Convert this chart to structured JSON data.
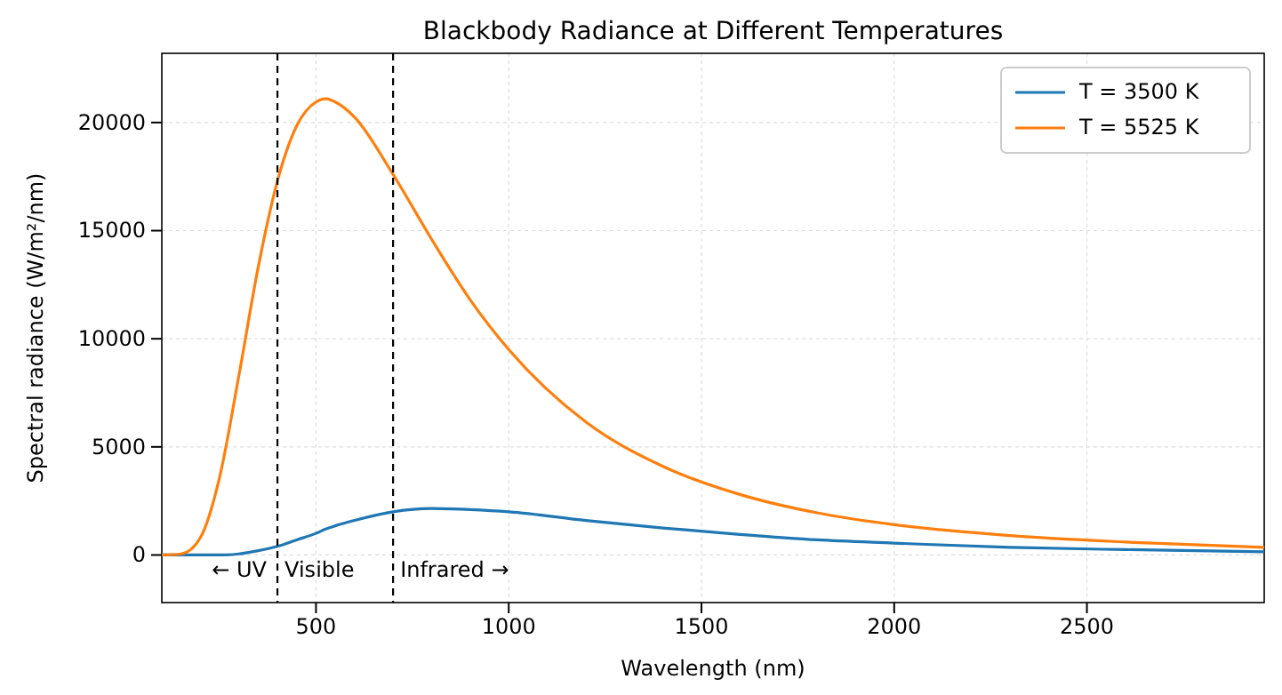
{
  "chart_data": {
    "type": "line",
    "title": "Blackbody Radiance at Different Temperatures",
    "xlabel": "Wavelength (nm)",
    "ylabel": "Spectral radiance (W/m²/nm)",
    "x": [
      100,
      150,
      200,
      250,
      300,
      350,
      400,
      450,
      500,
      525,
      550,
      600,
      700,
      800,
      900,
      1000,
      1200,
      1400,
      1600,
      1800,
      2000,
      2300,
      2600,
      2960
    ],
    "series": [
      {
        "name": "T = 3500 K",
        "color": "#1f77b4",
        "values": [
          0,
          0,
          0,
          0,
          50,
          200,
          400,
          700,
          1000,
          1200,
          1350,
          1600,
          2000,
          2150,
          2100,
          2000,
          1600,
          1250,
          950,
          700,
          550,
          350,
          250,
          150
        ]
      },
      {
        "name": "T = 5525 K",
        "color": "#ff7f0e",
        "values": [
          0,
          50,
          800,
          3600,
          8300,
          13300,
          17300,
          19850,
          20950,
          21100,
          20950,
          20250,
          17600,
          14600,
          11800,
          9500,
          6150,
          4100,
          2800,
          1950,
          1400,
          900,
          600,
          350
        ]
      }
    ],
    "xlim": [
      100,
      2960
    ],
    "ylim": [
      -2200,
      23200
    ],
    "xticks": [
      500,
      1000,
      1500,
      2000,
      2500
    ],
    "yticks": [
      0,
      5000,
      10000,
      15000,
      20000
    ],
    "ref_lines": [
      {
        "axis": "x",
        "value": 400,
        "color": "#000000",
        "line_style": "dashed"
      },
      {
        "axis": "x",
        "value": 700,
        "color": "#000000",
        "line_style": "dashed"
      }
    ],
    "annotations": [
      "← UV",
      "Visible",
      "Infrared →"
    ],
    "grid": true,
    "legend": "top right",
    "line_style": "solid",
    "marker": "none"
  }
}
